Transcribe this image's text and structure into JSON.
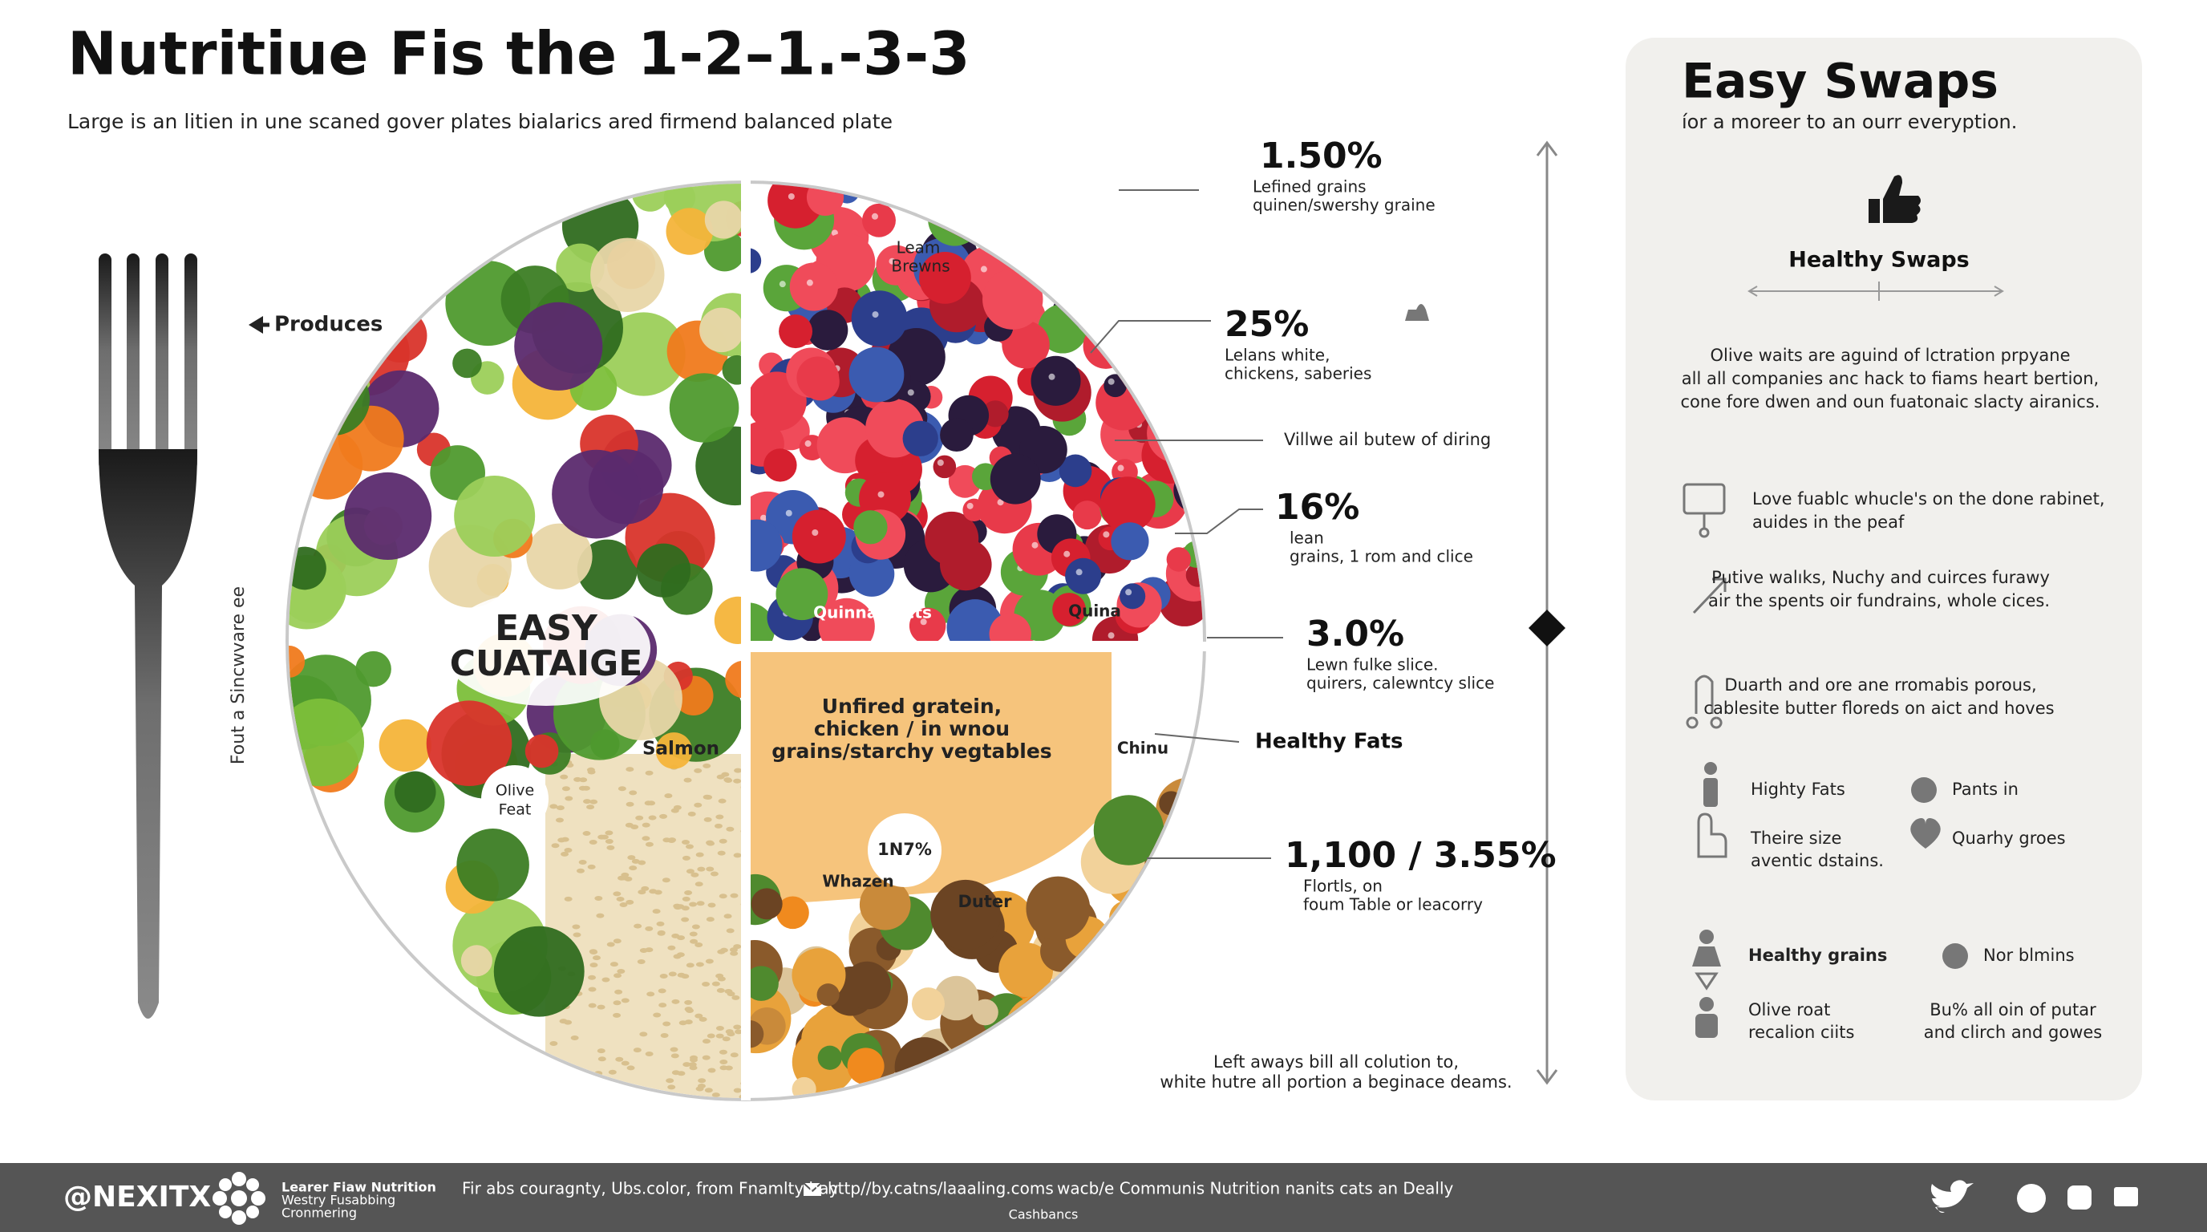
{
  "header": {
    "title": "Nutritiue Fis the 1-2–1.-3-3",
    "subtitle": "Large is an litien in une scaned gover plates bialarics ared firmend balanced plate"
  },
  "plate": {
    "produces": "Produces",
    "side_note": "Fout a Sincwvare ee",
    "center_label": [
      "EASY",
      "CUATAIGE"
    ],
    "salmon": "Salmon",
    "olive_feat": [
      "Olive",
      "Feat"
    ],
    "leam_brewns": [
      "Leam",
      "Brewns"
    ],
    "quinna_flicts": "Quinna Flicts",
    "quina": "Quina",
    "grain_label": [
      "Unfired gratein,",
      "chicken / in wnou",
      "grains/starchy vegtables"
    ],
    "chinu": "Chinu",
    "badge": "1N7%",
    "whazen": "Whazen",
    "duter": "Duter"
  },
  "stats": [
    {
      "value": "1.50%",
      "lines": [
        "Lefined grains",
        "quinen/swershy graine"
      ]
    },
    {
      "value": "25%",
      "lines": [
        "Lelans white,",
        "chickens, saberies"
      ]
    },
    {
      "value": "16%",
      "lines": [
        "lean",
        "grains, 1 rom and clice"
      ]
    },
    {
      "value": "3.0%",
      "lines": [
        "Lewn fulke slice.",
        "quirers, calewntcy slice"
      ]
    },
    {
      "value": "1,100 / 3.55%",
      "lines": [
        "Flortls, on",
        "foum Table or leacorry"
      ]
    }
  ],
  "notes": {
    "dining": "Villwe ail butew of diring",
    "healthy_fats": "Healthy Fats",
    "footer_note": [
      "Left aways bill all colution to,",
      "white hutre all portion a beginace deams."
    ]
  },
  "swaps": {
    "title": "Easy Swaps",
    "subtitle": "íor a moreer to an ourr everyption.",
    "section_title": "Healthy Swaps",
    "intro": [
      "Olive waits are aguind of lctration prpyane",
      "all all companies anc hack to fiams heart bertion,",
      "cone fore dwen and oun fuatonaic slacty airanics."
    ],
    "items": [
      {
        "lines": [
          "Love fuablc whucle's on the done rabinet,",
          "auides in the peaf"
        ]
      },
      {
        "lines": [
          "Putive walıks, Nuchy and cuirces furawy",
          "air the spents oir fundrains, whole cices."
        ]
      },
      {
        "lines": [
          "Duarth and ore ane rromabis porous,",
          "cablesite butter floreds on aict and hoves"
        ]
      }
    ],
    "grid": [
      {
        "lines": [
          "Highty Fats"
        ]
      },
      {
        "lines": [
          "Pants in"
        ]
      },
      {
        "lines": [
          "Theire size",
          "aventic dstains."
        ]
      },
      {
        "lines": [
          "Quarhy groes"
        ]
      },
      {
        "lines": [
          "Healthy grains"
        ]
      },
      {
        "lines": [
          "Nor blmins"
        ]
      },
      {
        "lines": [
          "Olive roat",
          "recalion ciits"
        ]
      },
      {
        "lines": [
          "Bu% all oin of putar",
          "and clirch and gowes"
        ]
      }
    ]
  },
  "footer": {
    "brand": "@NEXITX",
    "tagline": [
      "Learer Fiaw Nutrition",
      "Westry Fusabbing",
      "Cronmering"
    ],
    "info": "Fir abs couragnty, Ubs.color, from Fnamlty bay",
    "url": "http//by.catns/laaaling.coms",
    "community": "wacb/e Communis Nutrition nanits cats an Deally",
    "sub": "Cashbancs"
  }
}
